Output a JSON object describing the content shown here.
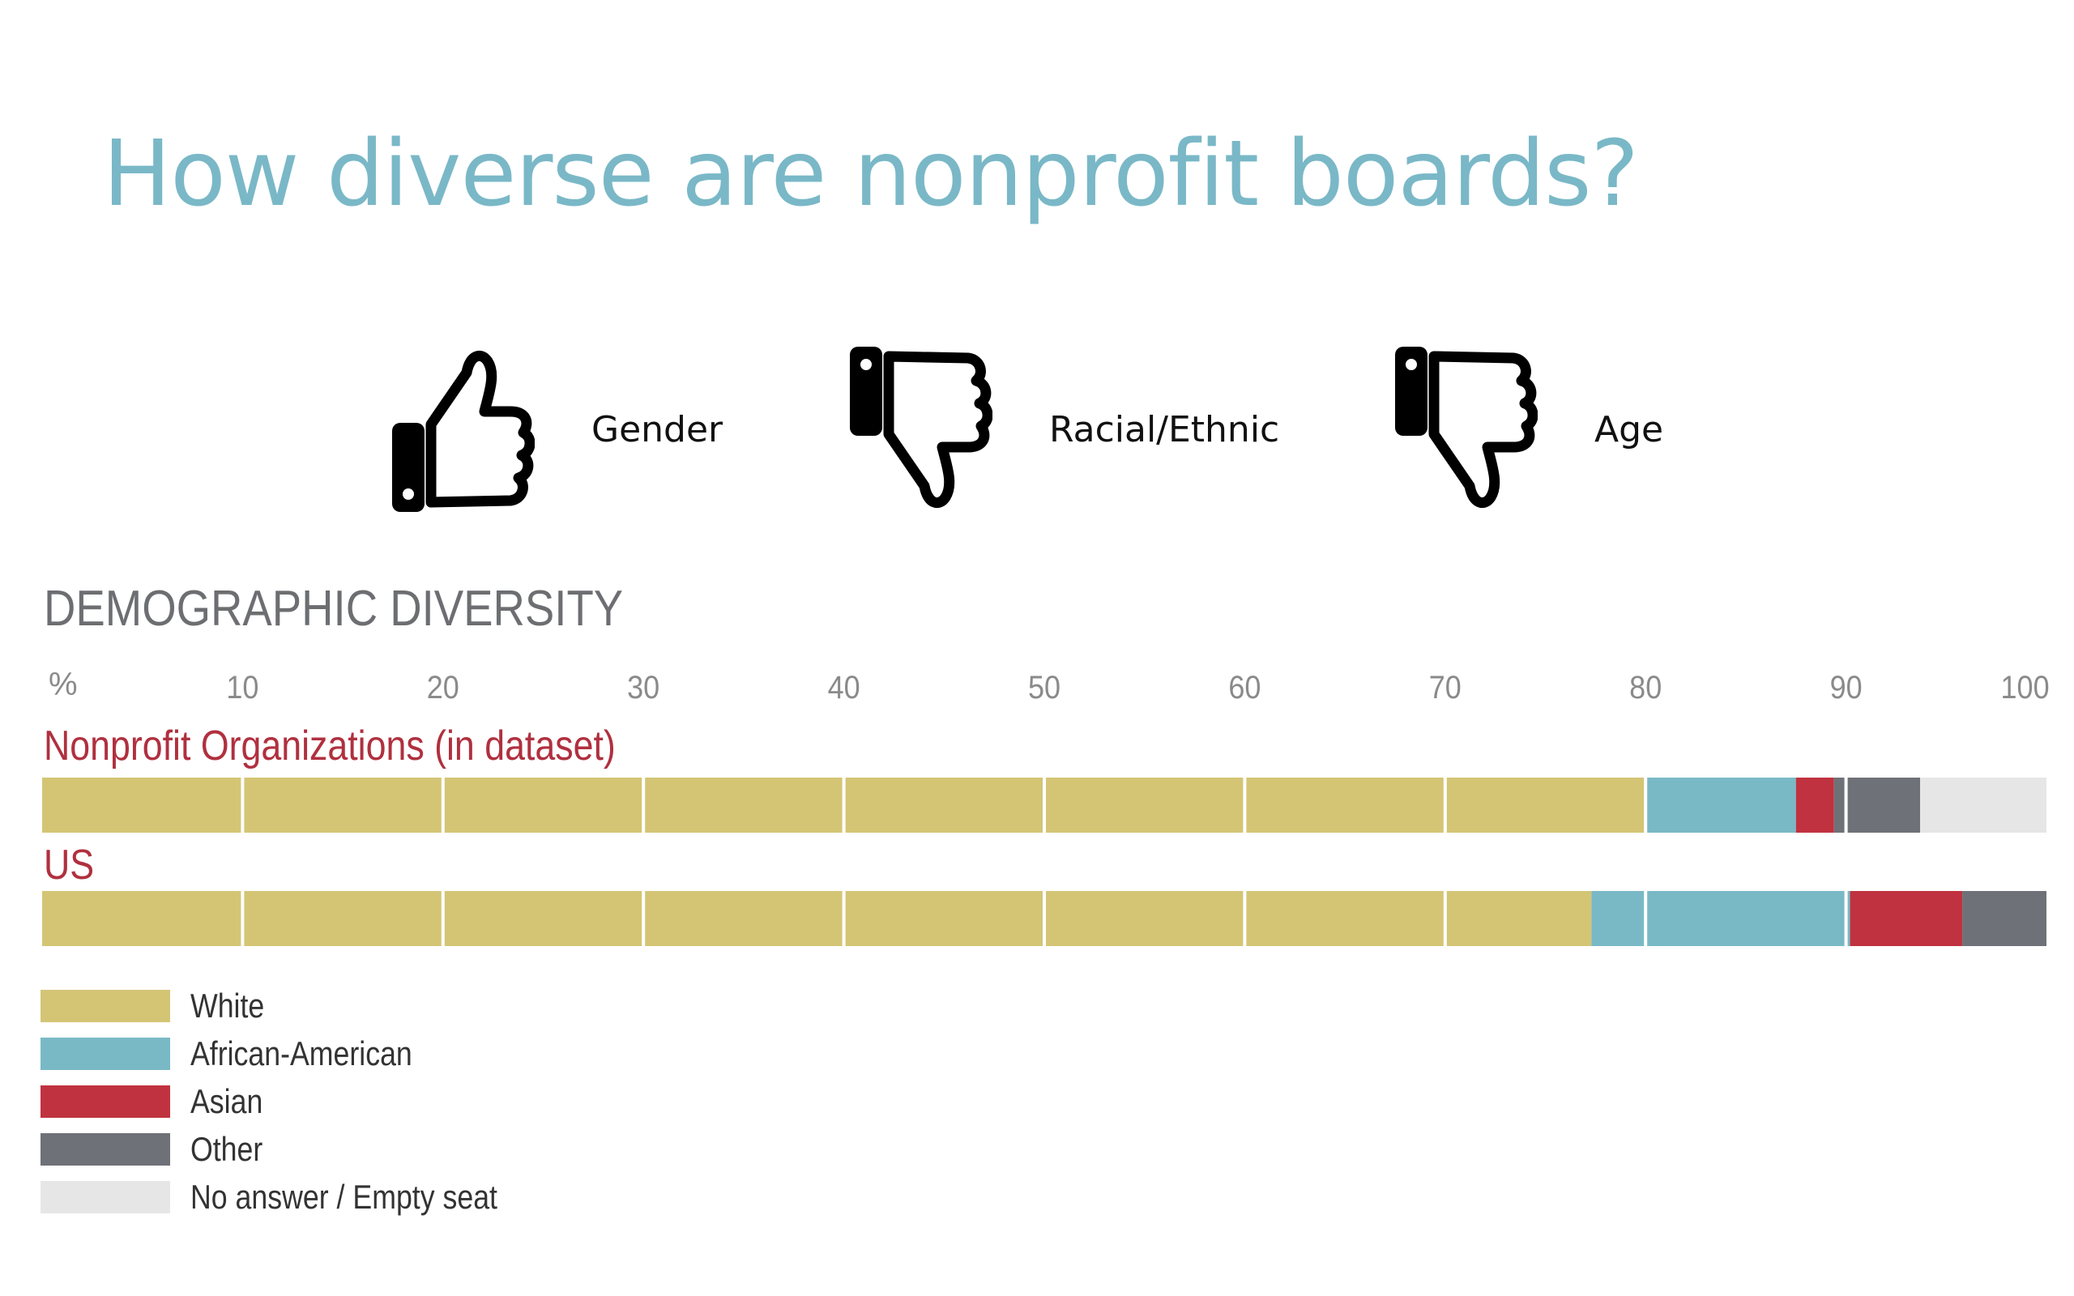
{
  "title": "How diverse are nonprofit boards?",
  "ratings": [
    {
      "label": "Gender",
      "icon": "thumbs-up-icon"
    },
    {
      "label": "Racial/Ethnic",
      "icon": "thumbs-down-icon"
    },
    {
      "label": "Age",
      "icon": "thumbs-down-icon"
    }
  ],
  "colors": {
    "title": "#7ab8c7",
    "series_title": "#b0303f",
    "heading": "#6d6e71",
    "axis": "#8a8a8a"
  },
  "chart_data": {
    "type": "bar",
    "orientation": "horizontal",
    "stacked": true,
    "title": "DEMOGRAPHIC DIVERSITY",
    "axis_unit": "%",
    "xlim": [
      0,
      100
    ],
    "ticks": [
      10,
      20,
      30,
      40,
      50,
      60,
      70,
      80,
      90,
      100
    ],
    "grid": true,
    "legend_position": "bottom-left",
    "categories": [
      "Nonprofit Organizations (in dataset)",
      "US"
    ],
    "series": [
      {
        "name": "White",
        "color": "#d4c575",
        "values": [
          80.0,
          77.3
        ]
      },
      {
        "name": "African-American",
        "color": "#79b9c6",
        "values": [
          7.5,
          12.9
        ]
      },
      {
        "name": "Asian",
        "color": "#c0323f",
        "values": [
          1.9,
          5.6
        ]
      },
      {
        "name": "Other",
        "color": "#6e7177",
        "values": [
          4.3,
          4.2
        ]
      },
      {
        "name": "No answer / Empty seat",
        "color": "#e6e6e6",
        "values": [
          6.3,
          0.0
        ]
      }
    ]
  }
}
